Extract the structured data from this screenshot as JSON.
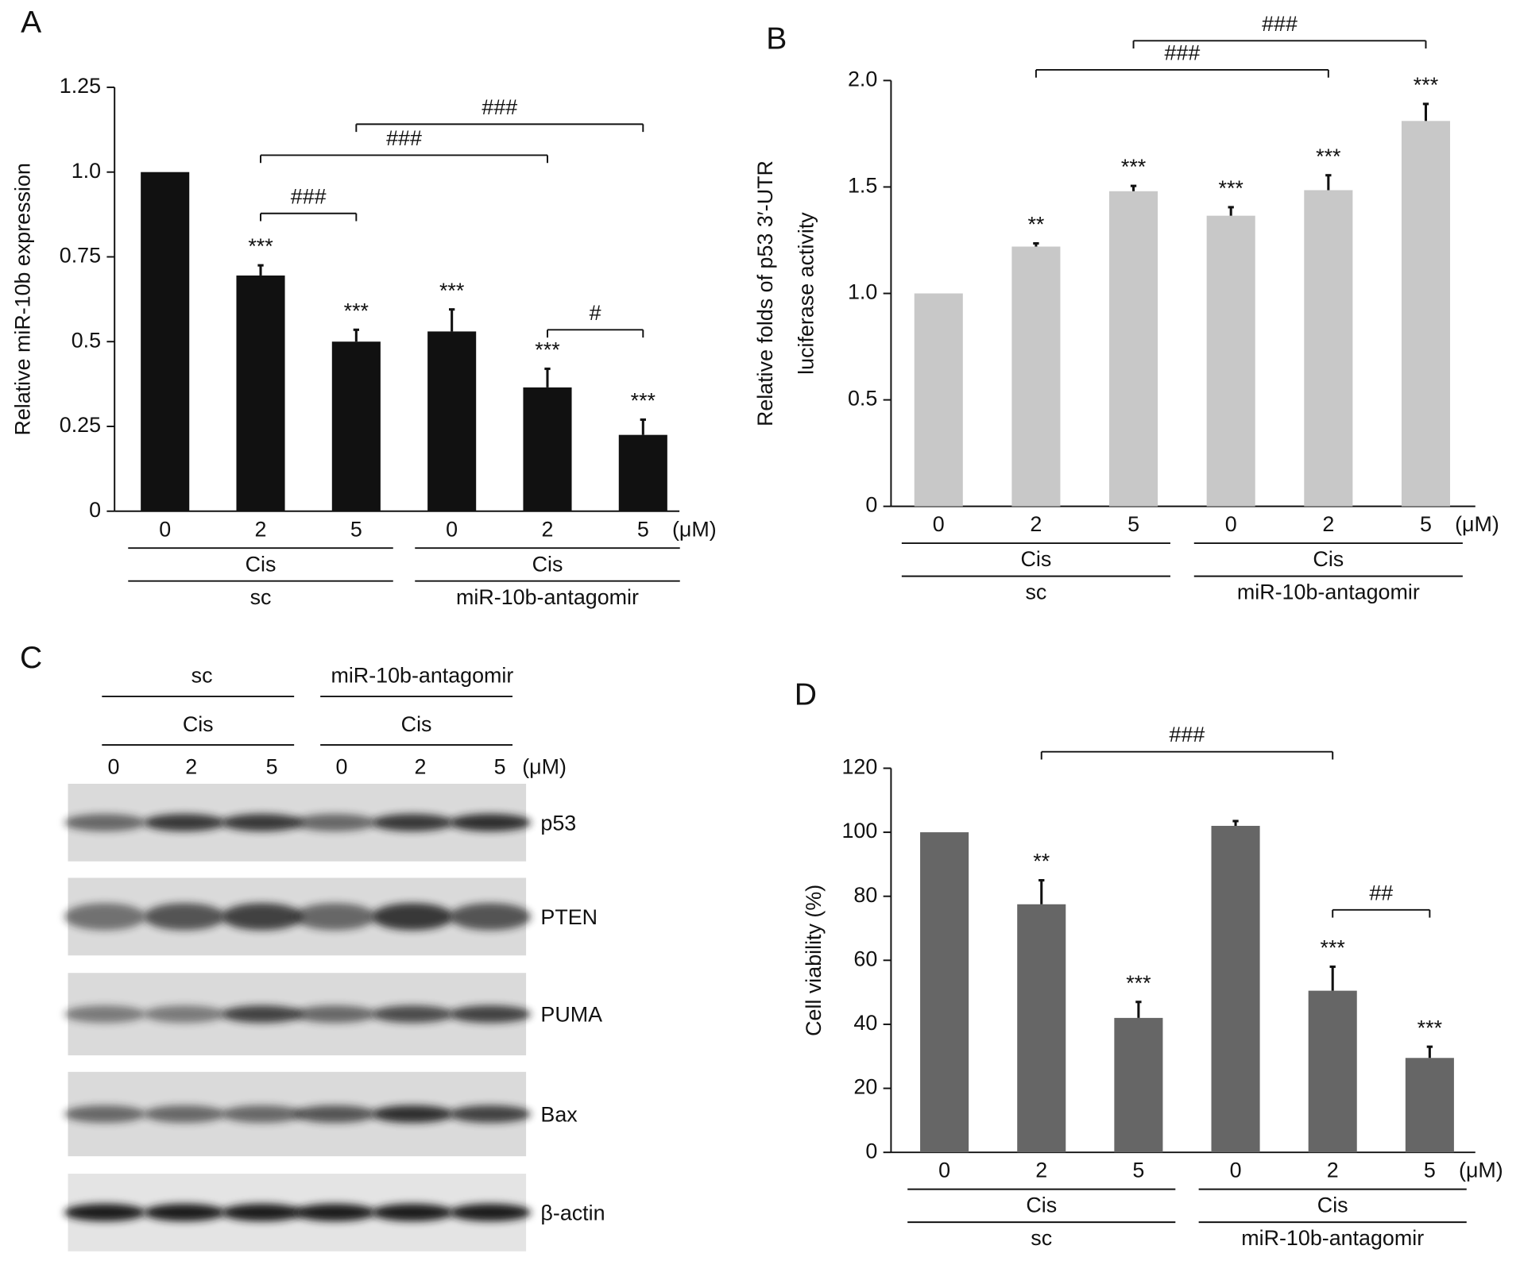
{
  "chart_data": [
    {
      "type": "bar",
      "panel": "A",
      "ylabel": "Relative miR-10b expression",
      "color": "#111111",
      "categories": [
        "0",
        "2",
        "5",
        "0",
        "2",
        "5"
      ],
      "x_unit": "(μM)",
      "values": [
        1.0,
        0.695,
        0.5,
        0.53,
        0.365,
        0.225
      ],
      "errors": [
        0,
        0.03,
        0.035,
        0.065,
        0.055,
        0.045
      ],
      "significance": [
        null,
        "***",
        "***",
        "***",
        "***",
        "***"
      ],
      "brackets": [
        {
          "from": 1,
          "to": 2,
          "label": "###"
        },
        {
          "from": 1,
          "to": 4,
          "label": "###"
        },
        {
          "from": 2,
          "to": 5,
          "label": "###"
        },
        {
          "from": 4,
          "to": 5,
          "label": "#"
        }
      ],
      "groups": [
        {
          "treatment": "Cis",
          "name": "sc"
        },
        {
          "treatment": "Cis",
          "name": "miR-10b-antagomir"
        }
      ],
      "ylim": [
        0,
        1.25
      ],
      "yticks": [
        0,
        0.25,
        0.5,
        0.75,
        {
          "value": 1,
          "label": "1.0"
        },
        1.25
      ]
    },
    {
      "type": "bar",
      "panel": "B",
      "ylabel": [
        "Relative folds of p53 3′-UTR",
        "luciferase activity"
      ],
      "color": "#c8c8c8",
      "categories": [
        "0",
        "2",
        "5",
        "0",
        "2",
        "5"
      ],
      "x_unit": "(μM)",
      "values": [
        1.0,
        1.22,
        1.48,
        1.365,
        1.485,
        1.81
      ],
      "errors": [
        0,
        0.015,
        0.025,
        0.04,
        0.07,
        0.08
      ],
      "significance": [
        null,
        "**",
        "***",
        "***",
        "***",
        "***"
      ],
      "brackets": [
        {
          "from": 1,
          "to": 4,
          "label": "###"
        },
        {
          "from": 2,
          "to": 5,
          "label": "###"
        }
      ],
      "groups": [
        {
          "treatment": "Cis",
          "name": "sc"
        },
        {
          "treatment": "Cis",
          "name": "miR-10b-antagomir"
        }
      ],
      "ylim": [
        0,
        2
      ],
      "yticks": [
        0,
        0.5,
        {
          "value": 1,
          "label": "1.0"
        },
        1.5,
        {
          "value": 2,
          "label": "2.0"
        }
      ]
    },
    {
      "type": "bar",
      "panel": "D",
      "ylabel": "Cell viability (%)",
      "color": "#666666",
      "categories": [
        "0",
        "2",
        "5",
        "0",
        "2",
        "5"
      ],
      "x_unit": "(μM)",
      "values": [
        100,
        77.5,
        42,
        102,
        50.5,
        29.5
      ],
      "errors": [
        0,
        7.5,
        5,
        1.5,
        7.5,
        3.5
      ],
      "significance": [
        null,
        "**",
        "***",
        null,
        "***",
        "***"
      ],
      "brackets": [
        {
          "from": 1,
          "to": 4,
          "label": "###"
        },
        {
          "from": 4,
          "to": 5,
          "label": "##"
        }
      ],
      "groups": [
        {
          "treatment": "Cis",
          "name": "sc"
        },
        {
          "treatment": "Cis",
          "name": "miR-10b-antagomir"
        }
      ],
      "ylim": [
        0,
        120
      ],
      "yticks": [
        0,
        20,
        40,
        60,
        80,
        100,
        120
      ]
    }
  ],
  "blot": {
    "panel": "C",
    "groups": [
      {
        "treatment": "Cis",
        "name": "sc"
      },
      {
        "treatment": "Cis",
        "name": "miR-10b-antagomir"
      }
    ],
    "doses": [
      "0",
      "2",
      "5",
      "0",
      "2",
      "5"
    ],
    "unit": "(μM)",
    "proteins": [
      "p53",
      "PTEN",
      "PUMA",
      "Bax",
      "β-actin"
    ]
  }
}
